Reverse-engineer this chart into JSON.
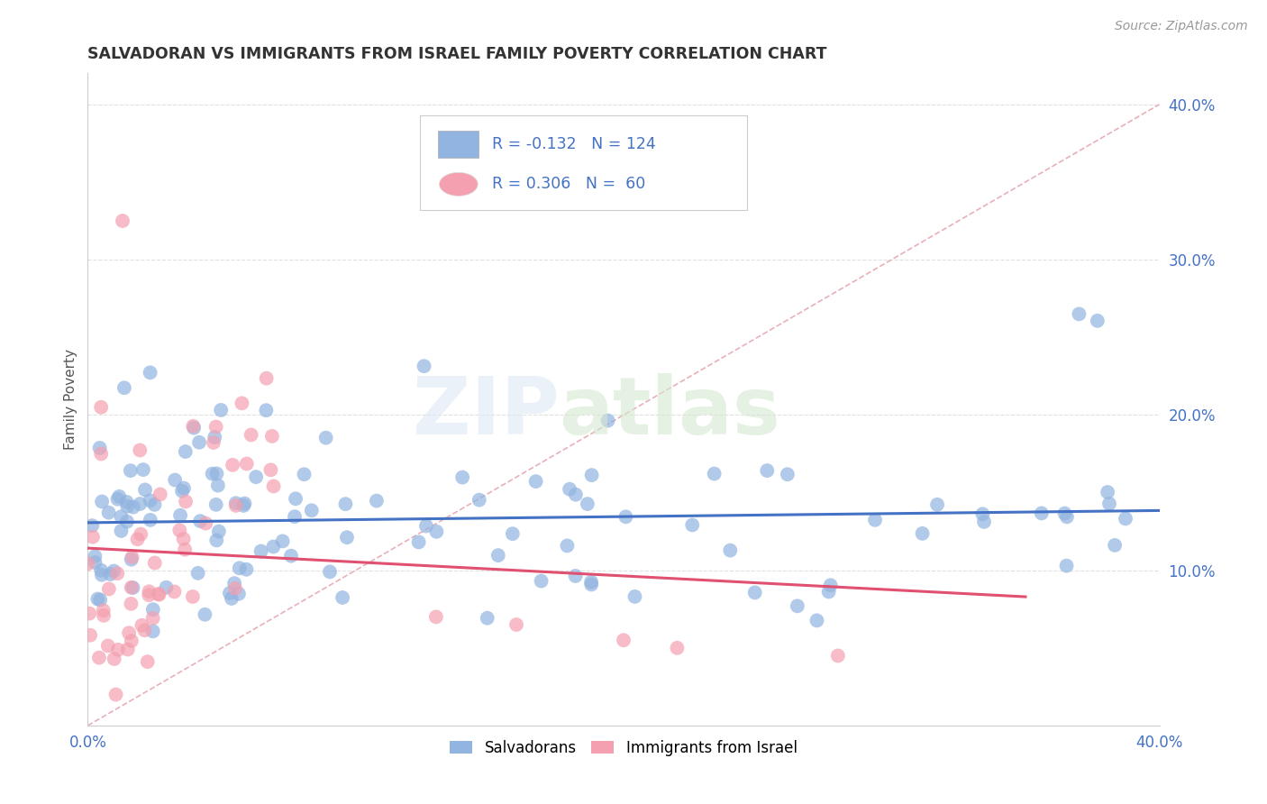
{
  "title": "SALVADORAN VS IMMIGRANTS FROM ISRAEL FAMILY POVERTY CORRELATION CHART",
  "source": "Source: ZipAtlas.com",
  "ylabel": "Family Poverty",
  "xlim": [
    0.0,
    0.4
  ],
  "ylim": [
    0.0,
    0.42
  ],
  "blue_R": -0.132,
  "blue_N": 124,
  "pink_R": 0.306,
  "pink_N": 60,
  "blue_color": "#92b4e0",
  "pink_color": "#f4a0b0",
  "blue_line_color": "#4472c4",
  "pink_line_color": "#e05070",
  "ref_line_color": "#d0a0a0",
  "legend_label_blue": "Salvadorans",
  "legend_label_pink": "Immigrants from Israel",
  "grid_color": "#e0e0e0",
  "blue_seed": 42,
  "pink_seed": 99
}
